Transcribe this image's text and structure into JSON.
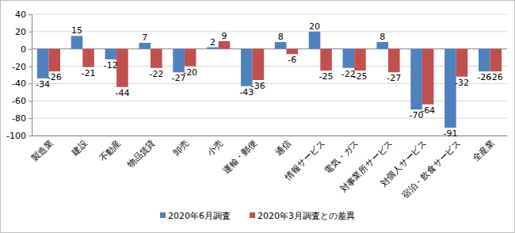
{
  "chart_data": {
    "type": "bar",
    "categories": [
      "製造業",
      "建設",
      "不動産",
      "物品賃貸",
      "卸売",
      "小売",
      "運輸・郵便",
      "通信",
      "情報サービス",
      "電気・ガス",
      "対事業所サービス",
      "対個人サービス",
      "宿泊・飲食サービス",
      "全産業"
    ],
    "series": [
      {
        "name": "2020年6月調査",
        "color": "#4f81bd",
        "values": [
          -34,
          15,
          -12,
          7,
          -27,
          2,
          -43,
          8,
          20,
          -22,
          8,
          -70,
          -91,
          -26
        ]
      },
      {
        "name": "2020年3月調査との差異",
        "color": "#c0504d",
        "values": [
          -26,
          -21,
          -44,
          -22,
          -20,
          9,
          -36,
          -6,
          -25,
          -25,
          -27,
          -64,
          -32,
          -26
        ]
      }
    ],
    "ylim": [
      -100,
      40
    ],
    "yticks": [
      -100,
      -80,
      -60,
      -40,
      -20,
      0,
      20,
      40
    ],
    "grid": true,
    "data_labels": true,
    "legend": "bottom"
  }
}
